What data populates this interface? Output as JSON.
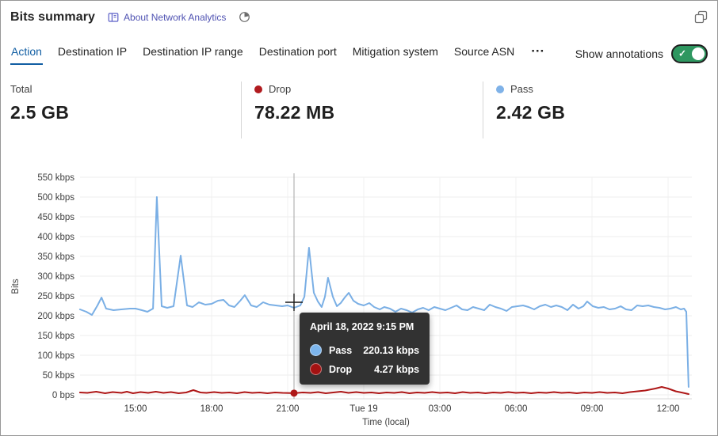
{
  "header": {
    "title": "Bits summary",
    "about_link": "About Network Analytics"
  },
  "icons": {
    "more_glyph": "···",
    "check_glyph": "✓"
  },
  "tabs": [
    {
      "label": "Action",
      "active": true
    },
    {
      "label": "Destination IP",
      "active": false
    },
    {
      "label": "Destination IP range",
      "active": false
    },
    {
      "label": "Destination port",
      "active": false
    },
    {
      "label": "Mitigation system",
      "active": false
    },
    {
      "label": "Source ASN",
      "active": false
    }
  ],
  "annotations_toggle": {
    "label": "Show annotations",
    "state": "on"
  },
  "colors": {
    "accent": "#115ea3",
    "link": "#4f52b2",
    "pass": "#7aafe5",
    "drop": "#ae1717",
    "drop_dot": "#b11b1f",
    "pass_dot": "#7fb2e8",
    "toggle_on": "#2e9760",
    "tooltip_bg": "#323232"
  },
  "stats": {
    "total": {
      "label": "Total",
      "value": "2.5 GB"
    },
    "drop": {
      "label": "Drop",
      "value": "78.22 MB",
      "color": "#b11b1f"
    },
    "pass": {
      "label": "Pass",
      "value": "2.42 GB",
      "color": "#7fb2e8"
    }
  },
  "tooltip": {
    "title": "April 18, 2022 9:15 PM",
    "rows": [
      {
        "label": "Pass",
        "value": "220.13 kbps",
        "color": "#7cb5ec"
      },
      {
        "label": "Drop",
        "value": "4.27 kbps",
        "color": "#a31212"
      }
    ]
  },
  "chart_data": {
    "type": "line",
    "title": "Bits summary",
    "xlabel": "Time (local)",
    "ylabel": "Bits",
    "x_unit": "hours since Apr 18 12:00 local",
    "x_range_hours": [
      0.8,
      24.9
    ],
    "ylim_kbps": [
      0,
      550
    ],
    "grid": true,
    "y_ticks": [
      {
        "v": 0,
        "label": "0 bps"
      },
      {
        "v": 50,
        "label": "50 kbps"
      },
      {
        "v": 100,
        "label": "100 kbps"
      },
      {
        "v": 150,
        "label": "150 kbps"
      },
      {
        "v": 200,
        "label": "200 kbps"
      },
      {
        "v": 250,
        "label": "250 kbps"
      },
      {
        "v": 300,
        "label": "300 kbps"
      },
      {
        "v": 350,
        "label": "350 kbps"
      },
      {
        "v": 400,
        "label": "400 kbps"
      },
      {
        "v": 450,
        "label": "450 kbps"
      },
      {
        "v": 500,
        "label": "500 kbps"
      },
      {
        "v": 550,
        "label": "550 kbps"
      }
    ],
    "x_ticks": [
      {
        "h": 3,
        "label": "15:00"
      },
      {
        "h": 6,
        "label": "18:00"
      },
      {
        "h": 9,
        "label": "21:00"
      },
      {
        "h": 12,
        "label": "Tue 19"
      },
      {
        "h": 15,
        "label": "03:00"
      },
      {
        "h": 18,
        "label": "06:00"
      },
      {
        "h": 21,
        "label": "09:00"
      },
      {
        "h": 24,
        "label": "12:00"
      }
    ],
    "hover": {
      "h": 9.25,
      "label": "April 18, 2022 9:15 PM",
      "pass_kbps": 220.13,
      "drop_kbps": 4.27
    },
    "series": [
      {
        "name": "Drop",
        "color": "#ae1717",
        "points": [
          [
            0.81,
            6
          ],
          [
            1.1,
            5
          ],
          [
            1.45,
            8
          ],
          [
            1.8,
            4
          ],
          [
            2.1,
            7
          ],
          [
            2.45,
            5
          ],
          [
            2.66,
            8
          ],
          [
            2.9,
            4
          ],
          [
            3.2,
            7
          ],
          [
            3.5,
            5
          ],
          [
            3.8,
            8
          ],
          [
            4.1,
            5
          ],
          [
            4.4,
            7
          ],
          [
            4.7,
            4
          ],
          [
            5.0,
            6
          ],
          [
            5.28,
            12
          ],
          [
            5.56,
            6
          ],
          [
            5.8,
            5
          ],
          [
            6.1,
            7
          ],
          [
            6.4,
            5
          ],
          [
            6.7,
            6
          ],
          [
            7.0,
            4
          ],
          [
            7.3,
            7
          ],
          [
            7.6,
            5
          ],
          [
            7.9,
            6
          ],
          [
            8.2,
            4
          ],
          [
            8.5,
            6
          ],
          [
            8.8,
            5
          ],
          [
            9.25,
            4.27
          ],
          [
            9.6,
            6
          ],
          [
            9.9,
            5
          ],
          [
            10.2,
            7
          ],
          [
            10.5,
            4
          ],
          [
            10.8,
            6
          ],
          [
            11.1,
            8
          ],
          [
            11.4,
            5
          ],
          [
            11.7,
            7
          ],
          [
            12.0,
            5
          ],
          [
            12.3,
            6
          ],
          [
            12.6,
            4
          ],
          [
            12.9,
            6
          ],
          [
            13.2,
            5
          ],
          [
            13.5,
            7
          ],
          [
            13.8,
            4
          ],
          [
            14.1,
            6
          ],
          [
            14.4,
            5
          ],
          [
            14.7,
            7
          ],
          [
            15.0,
            5
          ],
          [
            15.3,
            6
          ],
          [
            15.6,
            4
          ],
          [
            15.9,
            7
          ],
          [
            16.2,
            5
          ],
          [
            16.5,
            6
          ],
          [
            16.8,
            4
          ],
          [
            17.1,
            6
          ],
          [
            17.4,
            5
          ],
          [
            17.7,
            7
          ],
          [
            18.0,
            5
          ],
          [
            18.3,
            6
          ],
          [
            18.6,
            4
          ],
          [
            18.9,
            6
          ],
          [
            19.2,
            5
          ],
          [
            19.5,
            7
          ],
          [
            19.8,
            5
          ],
          [
            20.1,
            6
          ],
          [
            20.4,
            4
          ],
          [
            20.7,
            6
          ],
          [
            21.0,
            5
          ],
          [
            21.3,
            7
          ],
          [
            21.6,
            5
          ],
          [
            21.9,
            6
          ],
          [
            22.2,
            4
          ],
          [
            22.5,
            7
          ],
          [
            22.8,
            9
          ],
          [
            23.1,
            11
          ],
          [
            23.5,
            16
          ],
          [
            23.75,
            20
          ],
          [
            24.0,
            16
          ],
          [
            24.3,
            9
          ],
          [
            24.6,
            5
          ],
          [
            24.81,
            2
          ]
        ]
      },
      {
        "name": "Pass",
        "color": "#7aafe5",
        "points": [
          [
            0.81,
            216
          ],
          [
            1.06,
            210
          ],
          [
            1.28,
            202
          ],
          [
            1.5,
            226
          ],
          [
            1.66,
            246
          ],
          [
            1.84,
            218
          ],
          [
            2.13,
            214
          ],
          [
            2.44,
            216
          ],
          [
            2.78,
            218
          ],
          [
            3.0,
            218
          ],
          [
            3.25,
            214
          ],
          [
            3.47,
            210
          ],
          [
            3.69,
            218
          ],
          [
            3.84,
            500
          ],
          [
            4.03,
            224
          ],
          [
            4.25,
            220
          ],
          [
            4.5,
            224
          ],
          [
            4.78,
            352
          ],
          [
            5.03,
            226
          ],
          [
            5.25,
            222
          ],
          [
            5.5,
            234
          ],
          [
            5.75,
            228
          ],
          [
            6.0,
            230
          ],
          [
            6.25,
            238
          ],
          [
            6.47,
            240
          ],
          [
            6.69,
            226
          ],
          [
            6.9,
            222
          ],
          [
            7.13,
            238
          ],
          [
            7.31,
            252
          ],
          [
            7.56,
            226
          ],
          [
            7.78,
            222
          ],
          [
            8.03,
            234
          ],
          [
            8.28,
            228
          ],
          [
            8.53,
            226
          ],
          [
            8.78,
            224
          ],
          [
            9.0,
            226
          ],
          [
            9.25,
            220
          ],
          [
            9.5,
            226
          ],
          [
            9.66,
            248
          ],
          [
            9.84,
            372
          ],
          [
            10.03,
            258
          ],
          [
            10.19,
            236
          ],
          [
            10.34,
            222
          ],
          [
            10.47,
            248
          ],
          [
            10.59,
            296
          ],
          [
            10.78,
            248
          ],
          [
            10.94,
            224
          ],
          [
            11.09,
            232
          ],
          [
            11.25,
            246
          ],
          [
            11.41,
            258
          ],
          [
            11.59,
            238
          ],
          [
            11.78,
            230
          ],
          [
            12.0,
            226
          ],
          [
            12.22,
            232
          ],
          [
            12.41,
            222
          ],
          [
            12.63,
            216
          ],
          [
            12.81,
            222
          ],
          [
            13.03,
            218
          ],
          [
            13.25,
            210
          ],
          [
            13.47,
            218
          ],
          [
            13.69,
            214
          ],
          [
            13.91,
            208
          ],
          [
            14.13,
            216
          ],
          [
            14.34,
            220
          ],
          [
            14.56,
            214
          ],
          [
            14.78,
            222
          ],
          [
            15.0,
            218
          ],
          [
            15.22,
            214
          ],
          [
            15.44,
            220
          ],
          [
            15.66,
            226
          ],
          [
            15.88,
            216
          ],
          [
            16.09,
            214
          ],
          [
            16.31,
            222
          ],
          [
            16.53,
            218
          ],
          [
            16.75,
            214
          ],
          [
            16.97,
            228
          ],
          [
            17.19,
            222
          ],
          [
            17.41,
            218
          ],
          [
            17.63,
            212
          ],
          [
            17.84,
            222
          ],
          [
            18.06,
            224
          ],
          [
            18.28,
            226
          ],
          [
            18.5,
            222
          ],
          [
            18.72,
            216
          ],
          [
            18.94,
            224
          ],
          [
            19.16,
            228
          ],
          [
            19.38,
            222
          ],
          [
            19.59,
            226
          ],
          [
            19.81,
            222
          ],
          [
            20.03,
            214
          ],
          [
            20.25,
            228
          ],
          [
            20.47,
            218
          ],
          [
            20.66,
            224
          ],
          [
            20.81,
            236
          ],
          [
            21.03,
            224
          ],
          [
            21.25,
            220
          ],
          [
            21.47,
            222
          ],
          [
            21.69,
            216
          ],
          [
            21.91,
            218
          ],
          [
            22.13,
            224
          ],
          [
            22.34,
            216
          ],
          [
            22.56,
            214
          ],
          [
            22.78,
            226
          ],
          [
            23.0,
            224
          ],
          [
            23.22,
            226
          ],
          [
            23.44,
            222
          ],
          [
            23.66,
            220
          ],
          [
            23.88,
            216
          ],
          [
            24.09,
            218
          ],
          [
            24.31,
            222
          ],
          [
            24.5,
            216
          ],
          [
            24.63,
            218
          ],
          [
            24.72,
            210
          ],
          [
            24.81,
            20
          ]
        ]
      }
    ]
  }
}
